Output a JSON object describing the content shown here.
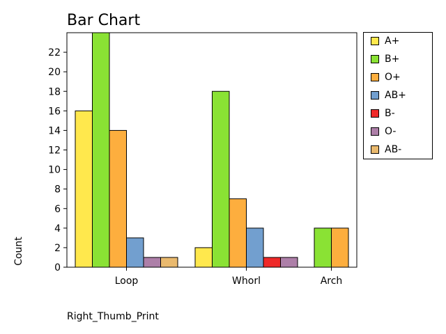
{
  "chart_data": {
    "type": "bar",
    "title": "Bar Chart",
    "xlabel": "Right_Thumb_Print",
    "ylabel": "Count",
    "categories": [
      "Loop",
      "Whorl",
      "Arch"
    ],
    "ylim": [
      0,
      24
    ],
    "yticks": [
      0,
      2,
      4,
      6,
      8,
      10,
      12,
      14,
      16,
      18,
      20,
      22
    ],
    "legend_position": "right-top",
    "grid": false,
    "series": [
      {
        "name": "A+",
        "color": "#ffe84d",
        "values": [
          16,
          2,
          null
        ]
      },
      {
        "name": "B+",
        "color": "#8ae234",
        "values": [
          24,
          18,
          4
        ]
      },
      {
        "name": "O+",
        "color": "#fdae3e",
        "values": [
          14,
          7,
          4
        ]
      },
      {
        "name": "AB+",
        "color": "#729fcf",
        "values": [
          3,
          4,
          null
        ]
      },
      {
        "name": "B-",
        "color": "#ef2929",
        "values": [
          null,
          1,
          null
        ]
      },
      {
        "name": "O-",
        "color": "#ad7fa8",
        "values": [
          1,
          1,
          null
        ]
      },
      {
        "name": "AB-",
        "color": "#e9b96e",
        "values": [
          1,
          null,
          null
        ]
      }
    ]
  }
}
